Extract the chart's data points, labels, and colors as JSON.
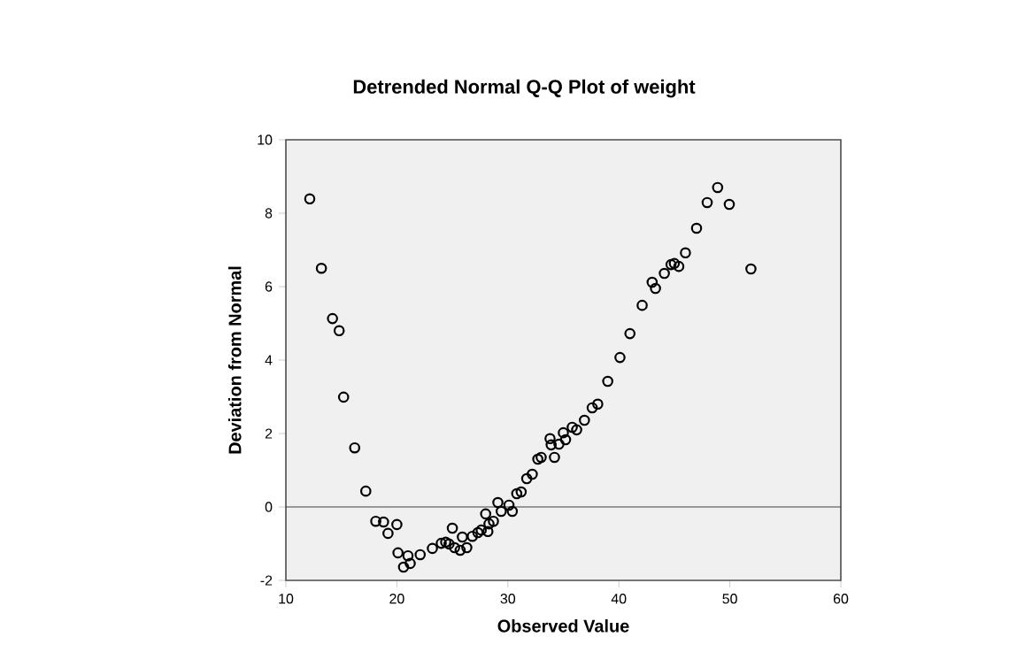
{
  "chart_data": {
    "type": "scatter",
    "title": "Detrended Normal Q-Q Plot of weight",
    "xlabel": "Observed Value",
    "ylabel": "Deviation from Normal",
    "series": [
      {
        "color": "#000000",
        "x": [
          12.15,
          13.2,
          14.2,
          14.8,
          15.2,
          16.2,
          17.2,
          18.1,
          18.8,
          19.2,
          20.0,
          20.1,
          20.6,
          21.0,
          21.2,
          22.1,
          23.2,
          24.0,
          24.4,
          24.7,
          25.0,
          25.2,
          25.7,
          25.9,
          26.3,
          26.8,
          27.3,
          27.6,
          28.0,
          28.2,
          28.3,
          28.7,
          29.1,
          29.4,
          30.1,
          30.4,
          30.8,
          31.2,
          31.7,
          32.2,
          32.7,
          33.0,
          33.8,
          33.9,
          34.2,
          34.6,
          35.0,
          35.2,
          35.8,
          36.2,
          36.9,
          37.6,
          38.1,
          39.0,
          40.1,
          41.0,
          42.1,
          43.0,
          43.3,
          44.1,
          44.7,
          45.0,
          45.4,
          46.0,
          47.0,
          47.96,
          48.9,
          49.95,
          51.9
        ],
        "values": [
          8.39,
          6.5,
          5.13,
          4.8,
          2.99,
          1.61,
          0.43,
          -0.39,
          -0.41,
          -0.72,
          -0.48,
          -1.25,
          -1.64,
          -1.33,
          -1.54,
          -1.3,
          -1.13,
          -0.99,
          -0.96,
          -1.01,
          -0.58,
          -1.11,
          -1.18,
          -0.82,
          -1.11,
          -0.8,
          -0.7,
          -0.63,
          -0.19,
          -0.67,
          -0.46,
          -0.39,
          0.12,
          -0.12,
          0.05,
          -0.12,
          0.36,
          0.41,
          0.77,
          0.89,
          1.3,
          1.35,
          1.86,
          1.69,
          1.35,
          1.71,
          2.02,
          1.83,
          2.17,
          2.1,
          2.36,
          2.7,
          2.8,
          3.42,
          4.07,
          4.72,
          5.49,
          6.12,
          5.95,
          6.36,
          6.6,
          6.63,
          6.55,
          6.92,
          7.59,
          8.29,
          8.7,
          8.24,
          6.48
        ]
      }
    ],
    "xlim": [
      10,
      60
    ],
    "ylim": [
      -2,
      10
    ],
    "xticks": [
      10,
      20,
      30,
      40,
      50,
      60
    ],
    "yticks": [
      -2,
      0,
      2,
      4,
      6,
      8,
      10
    ],
    "marker": "circle",
    "grid": false,
    "ref_lines": [
      {
        "axis": "y",
        "value": 0
      }
    ]
  }
}
